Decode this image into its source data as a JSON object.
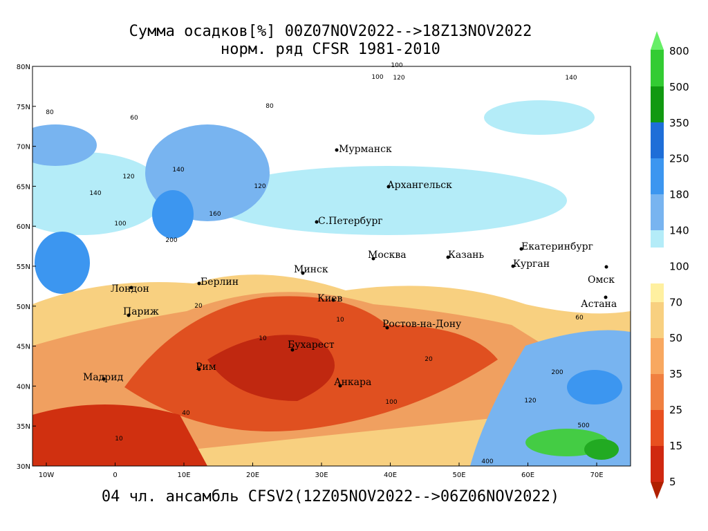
{
  "header": {
    "title": "Сумма осадков[%] 00Z07NOV2022-->18Z13NOV2022",
    "subtitle": "норм. ряд CFSR 1981-2010"
  },
  "footer": "04 чл. ансамбль CFSV2(12Z05NOV2022-->06Z06NOV2022)",
  "map": {
    "lat_labels": [
      "80N",
      "75N",
      "70N",
      "65N",
      "60N",
      "55N",
      "50N",
      "45N",
      "40N",
      "35N",
      "30N"
    ],
    "lon_labels": [
      "10W",
      "0",
      "10E",
      "20E",
      "30E",
      "40E",
      "50E",
      "60E",
      "70E"
    ],
    "cities": [
      "Мурманск",
      "Архангельск",
      "С.Петербург",
      "Москва",
      "Казань",
      "Екатеринбург",
      "Курган",
      "Омск",
      "Астана",
      "Минск",
      "Берлин",
      "Лондон",
      "Париж",
      "Киев",
      "Ростов-на-Дону",
      "Бухарест",
      "Рим",
      "Мадрид",
      "Анкара"
    ],
    "contour_labels": [
      "100",
      "120",
      "80",
      "140",
      "60",
      "100",
      "80",
      "140",
      "120",
      "160",
      "120",
      "140",
      "100",
      "200",
      "10",
      "10",
      "20",
      "40",
      "100",
      "200",
      "500",
      "400",
      "10",
      "20",
      "60",
      "120"
    ]
  },
  "legend": {
    "levels": [
      800,
      500,
      350,
      250,
      180,
      140,
      100,
      70,
      50,
      35,
      25,
      15,
      5
    ]
  }
}
